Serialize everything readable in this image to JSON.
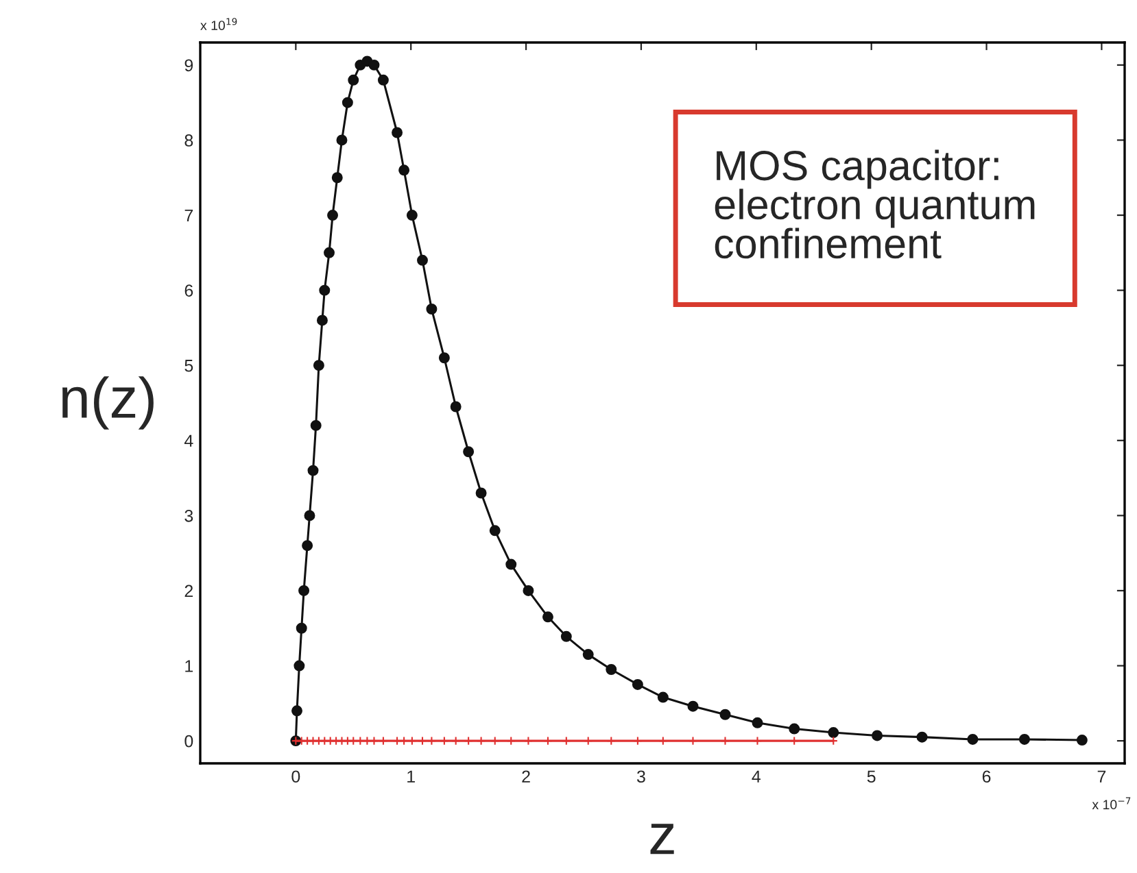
{
  "chart_data": {
    "type": "line",
    "xlabel": "z",
    "ylabel": "n(z)",
    "annotations": [
      "MOS capacitor:\nelectron quantum\nconfinement",
      "x 10$^{19}$",
      "x 10$^{−7}$"
    ],
    "series": [
      {
        "color": "#111111",
        "marker": "circle",
        "x": [
          0,
          0.01,
          0.03,
          0.05,
          0.07,
          0.1,
          0.12,
          0.15,
          0.175,
          0.2,
          0.23,
          0.25,
          0.29,
          0.32,
          0.36,
          0.4,
          0.45,
          0.5,
          0.56,
          0.62,
          0.68,
          0.76,
          0.88,
          0.94,
          1.01,
          1.1,
          1.18,
          1.29,
          1.39,
          1.5,
          1.61,
          1.73,
          1.87,
          2.02,
          2.19,
          2.35,
          2.54,
          2.74,
          2.97,
          3.19,
          3.45,
          3.73,
          4.01,
          4.33,
          4.67,
          5.05,
          5.44,
          5.88,
          6.33,
          6.83
        ],
        "values": [
          0,
          0.4,
          1,
          1.5,
          2,
          2.6,
          3,
          3.6,
          4.2,
          5,
          5.6,
          6,
          6.5,
          7,
          7.5,
          8,
          8.5,
          8.8,
          9,
          9.05,
          9,
          8.8,
          8.1,
          7.6,
          7,
          6.4,
          5.75,
          5.1,
          4.45,
          3.85,
          3.3,
          2.8,
          2.35,
          2,
          1.65,
          1.39,
          1.15,
          0.95,
          0.75,
          0.58,
          0.46,
          0.35,
          0.24,
          0.16,
          0.11,
          0.07,
          0.05,
          0.02,
          0.02,
          0.01
        ]
      },
      {
        "color": "#e03030",
        "marker": "cross",
        "x": [
          0,
          0.05,
          0.1,
          0.15,
          0.2,
          0.25,
          0.3,
          0.35,
          0.4,
          0.45,
          0.5,
          0.56,
          0.62,
          0.68,
          0.76,
          0.88,
          0.94,
          1.01,
          1.1,
          1.18,
          1.29,
          1.39,
          1.5,
          1.61,
          1.73,
          1.87,
          2.02,
          2.19,
          2.35,
          2.54,
          2.74,
          2.97,
          3.19,
          3.45,
          3.73,
          4.01,
          4.33,
          4.67
        ],
        "values": [
          0,
          0,
          0,
          0,
          0,
          0,
          0,
          0,
          0,
          0,
          0,
          0,
          0,
          0,
          0,
          0,
          0,
          0,
          0,
          0,
          0,
          0,
          0,
          0,
          0,
          0,
          0,
          0,
          0,
          0,
          0,
          0,
          0,
          0,
          0,
          0,
          0,
          0
        ]
      }
    ],
    "xlim": [
      -0.83,
      7.2
    ],
    "ylim": [
      -0.3,
      9.3
    ],
    "xticks": [
      0,
      1,
      2,
      3,
      4,
      5,
      6,
      7
    ],
    "yticks": [
      0,
      1,
      2,
      3,
      4,
      5,
      6,
      7,
      8,
      9
    ]
  }
}
